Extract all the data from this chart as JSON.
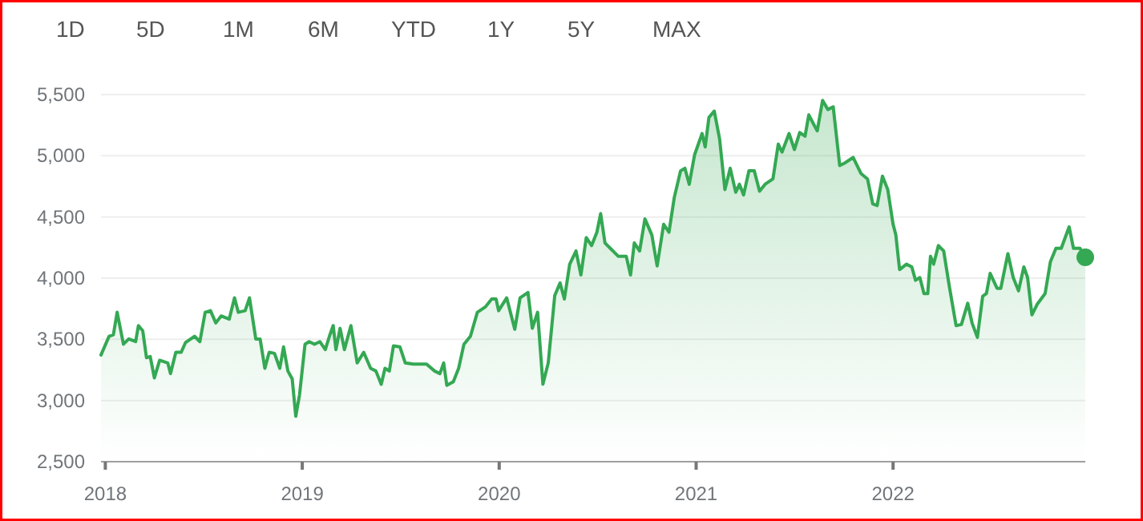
{
  "chart_data": {
    "type": "area",
    "annotations": [
      "1D",
      "5D",
      "1M",
      "6M",
      "YTD",
      "1Y",
      "5Y",
      "MAX"
    ],
    "x": [
      2017.978,
      2018.019,
      2018.041,
      2018.06,
      2018.092,
      2018.119,
      2018.154,
      2018.168,
      2018.19,
      2018.209,
      2018.228,
      2018.249,
      2018.276,
      2018.317,
      2018.331,
      2018.358,
      2018.385,
      2018.407,
      2018.453,
      2018.48,
      2018.507,
      2018.534,
      2018.561,
      2018.588,
      2018.629,
      2018.656,
      2018.675,
      2018.71,
      2018.732,
      2018.764,
      2018.786,
      2018.81,
      2018.832,
      2018.859,
      2018.886,
      2018.905,
      2018.927,
      2018.949,
      2018.967,
      2018.986,
      2019.014,
      2019.035,
      2019.062,
      2019.089,
      2019.117,
      2019.138,
      2019.157,
      2019.171,
      2019.192,
      2019.214,
      2019.247,
      2019.279,
      2019.312,
      2019.347,
      2019.374,
      2019.401,
      2019.42,
      2019.442,
      2019.463,
      2019.496,
      2019.523,
      2019.564,
      2019.631,
      2019.672,
      2019.699,
      2019.718,
      2019.734,
      2019.767,
      2019.794,
      2019.821,
      2019.854,
      2019.889,
      2019.93,
      2019.962,
      2019.984,
      2019.997,
      2020.038,
      2020.079,
      2020.106,
      2020.146,
      2020.168,
      2020.195,
      2020.222,
      2020.249,
      2020.282,
      2020.309,
      2020.331,
      2020.358,
      2020.39,
      2020.415,
      2020.442,
      2020.469,
      2020.496,
      2020.515,
      2020.537,
      2020.564,
      2020.604,
      2020.645,
      2020.667,
      2020.686,
      2020.713,
      2020.74,
      2020.775,
      2020.802,
      2020.835,
      2020.862,
      2020.889,
      2020.921,
      2020.943,
      2020.965,
      2020.992,
      2021.03,
      2021.046,
      2021.065,
      2021.092,
      2021.119,
      2021.146,
      2021.173,
      2021.201,
      2021.22,
      2021.241,
      2021.268,
      2021.295,
      2021.322,
      2021.35,
      2021.39,
      2021.417,
      2021.436,
      2021.472,
      2021.499,
      2021.526,
      2021.553,
      2021.572,
      2021.593,
      2021.615,
      2021.642,
      2021.669,
      2021.696,
      2021.729,
      2021.756,
      2021.797,
      2021.837,
      2021.87,
      2021.897,
      2021.919,
      2021.946,
      2021.973,
      2022.0,
      2022.014,
      2022.033,
      2022.068,
      2022.095,
      2022.114,
      2022.136,
      2022.157,
      2022.176,
      2022.19,
      2022.206,
      2022.23,
      2022.257,
      2022.285,
      2022.32,
      2022.347,
      2022.379,
      2022.401,
      2022.428,
      2022.455,
      2022.474,
      2022.493,
      2022.528,
      2022.547,
      2022.583,
      2022.61,
      2022.637,
      2022.664,
      2022.683,
      2022.705,
      2022.732,
      2022.772,
      2022.799,
      2022.827,
      2022.854,
      2022.894,
      2022.916,
      2022.949,
      2022.976
    ],
    "series": [
      {
        "color": "#34a853",
        "values": [
          3372,
          3525,
          3538,
          3721,
          3460,
          3503,
          3481,
          3612,
          3569,
          3350,
          3359,
          3185,
          3329,
          3307,
          3220,
          3394,
          3394,
          3473,
          3525,
          3481,
          3721,
          3734,
          3634,
          3691,
          3665,
          3839,
          3721,
          3734,
          3839,
          3503,
          3503,
          3263,
          3394,
          3385,
          3263,
          3438,
          3241,
          3176,
          2871,
          3045,
          3460,
          3481,
          3460,
          3481,
          3416,
          3525,
          3612,
          3416,
          3590,
          3416,
          3612,
          3307,
          3394,
          3263,
          3241,
          3132,
          3263,
          3241,
          3446,
          3438,
          3307,
          3298,
          3298,
          3241,
          3220,
          3307,
          3124,
          3154,
          3263,
          3460,
          3525,
          3721,
          3765,
          3830,
          3830,
          3734,
          3839,
          3582,
          3839,
          3883,
          3590,
          3721,
          3133,
          3307,
          3857,
          3961,
          3830,
          4114,
          4222,
          4026,
          4331,
          4266,
          4375,
          4527,
          4288,
          4244,
          4179,
          4179,
          4026,
          4288,
          4222,
          4484,
          4353,
          4100,
          4440,
          4375,
          4659,
          4877,
          4898,
          4767,
          5007,
          5182,
          5073,
          5313,
          5365,
          5139,
          4724,
          4898,
          4702,
          4767,
          4680,
          4877,
          4877,
          4711,
          4767,
          4811,
          5095,
          5030,
          5182,
          5051,
          5190,
          5160,
          5334,
          5269,
          5204,
          5452,
          5378,
          5400,
          4920,
          4942,
          4986,
          4855,
          4811,
          4606,
          4593,
          4833,
          4724,
          4440,
          4353,
          4070,
          4114,
          4092,
          3983,
          4005,
          3874,
          3874,
          4179,
          4114,
          4266,
          4222,
          3939,
          3612,
          3621,
          3795,
          3634,
          3516,
          3852,
          3874,
          4039,
          3917,
          3917,
          4200,
          4005,
          3896,
          4092,
          4005,
          3700,
          3787,
          3874,
          4135,
          4244,
          4244,
          4419,
          4244,
          4244,
          4170
        ]
      }
    ],
    "xlim": [
      2017.978,
      2022.976
    ],
    "xticks": [
      2018,
      2019,
      2020,
      2021,
      2022
    ],
    "ylim": [
      2500,
      5500
    ],
    "yticks": [
      {
        "value": 2500,
        "label": "2,500"
      },
      {
        "value": 3000,
        "label": "3,000"
      },
      {
        "value": 3500,
        "label": "3,500"
      },
      {
        "value": 4000,
        "label": "4,000"
      },
      {
        "value": 4500,
        "label": "4,500"
      },
      {
        "value": 5000,
        "label": "5,000"
      },
      {
        "value": 5500,
        "label": "5,500"
      }
    ],
    "grid": "y"
  }
}
